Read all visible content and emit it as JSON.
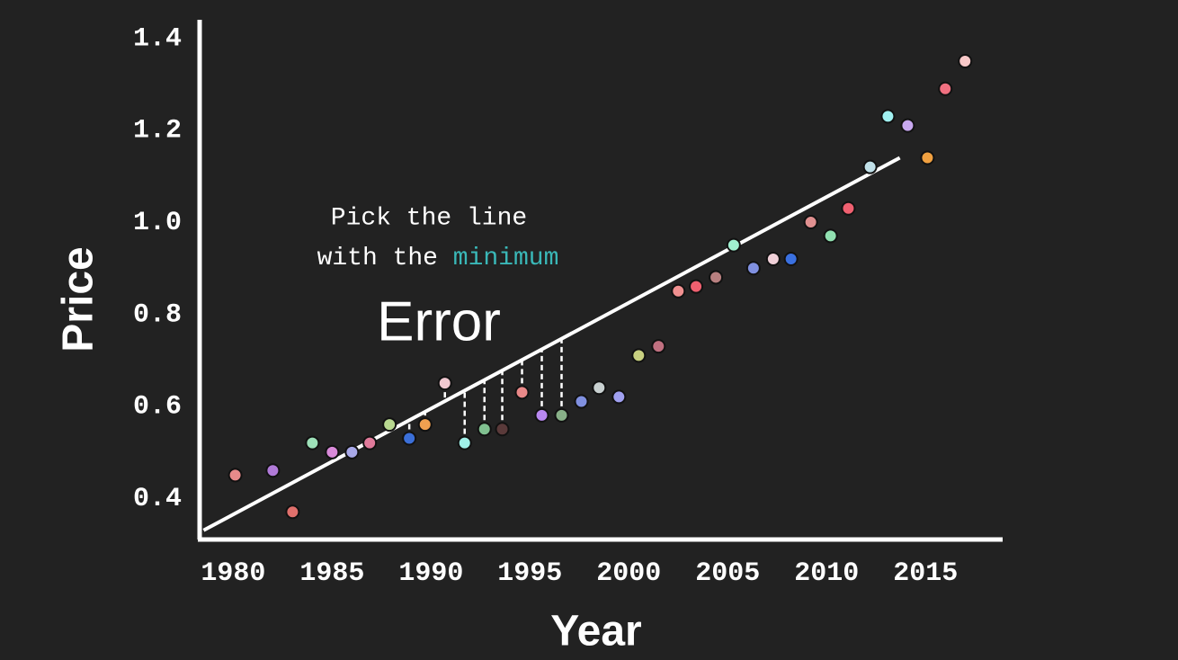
{
  "chart_data": {
    "type": "scatter",
    "x_label": "Year",
    "y_label": "Price",
    "annotation": {
      "line1": "Pick the line",
      "line2": "with the",
      "highlight": "minimum",
      "highlight_color": "#3ab8b8",
      "emphasis": "Error"
    },
    "xlim": [
      1978.3,
      2018.9
    ],
    "ylim": [
      0.31,
      1.44
    ],
    "xticks": [
      1980,
      1985,
      1990,
      1995,
      2000,
      2005,
      2010,
      2015
    ],
    "yticks": [
      {
        "value": 0.4,
        "label": "0.4"
      },
      {
        "value": 0.6,
        "label": "0.6"
      },
      {
        "value": 0.8,
        "label": "0.8"
      },
      {
        "value": 1.0,
        "label": "1.0"
      },
      {
        "value": 1.2,
        "label": "1.2"
      },
      {
        "value": 1.4,
        "label": "1.4"
      }
    ],
    "x": [
      1980.1,
      1982,
      1983,
      1984,
      1985,
      1986,
      1986.9,
      1987.9,
      1988.9,
      1989.7,
      1990.7,
      1991.7,
      1992.7,
      1993.6,
      1994.6,
      1995.6,
      1996.6,
      1997.6,
      1998.5,
      1999.5,
      2000.5,
      2001.5,
      2002.5,
      2003.4,
      2004.4,
      2005.3,
      2006.3,
      2007.3,
      2008.2,
      2009.2,
      2010.2,
      2011.1,
      2012.2,
      2013.1,
      2014.1,
      2015.1,
      2016,
      2017
    ],
    "values": [
      0.45,
      0.46,
      0.37,
      0.52,
      0.5,
      0.5,
      0.52,
      0.56,
      0.53,
      0.56,
      0.65,
      0.52,
      0.55,
      0.55,
      0.63,
      0.58,
      0.58,
      0.61,
      0.64,
      0.62,
      0.71,
      0.73,
      0.85,
      0.86,
      0.88,
      0.95,
      0.9,
      0.92,
      0.92,
      1.0,
      0.97,
      1.03,
      1.12,
      1.23,
      1.21,
      1.14,
      1.29,
      1.35
    ],
    "colors": [
      "#e88a8a",
      "#b07ad8",
      "#e0706c",
      "#9de0b8",
      "#d98ad9",
      "#a8a8e8",
      "#e07a9a",
      "#b8d890",
      "#3b6fd8",
      "#f0a050",
      "#f0c8d0",
      "#a0f0e8",
      "#80c090",
      "#5a3a3a",
      "#e88888",
      "#b888f0",
      "#88b088",
      "#8090e0",
      "#c8d0d0",
      "#a0a0f0",
      "#c8d080",
      "#c07080",
      "#f09090",
      "#f06070",
      "#b88080",
      "#a0f0d0",
      "#8090e0",
      "#f0d0d8",
      "#3a70e0",
      "#e09090",
      "#90e0b0",
      "#f06070",
      "#c0e0e8",
      "#a0f0f0",
      "#c8a8f0",
      "#f0a040",
      "#f07080",
      "#f8c8c8"
    ],
    "fit_line": {
      "x": [
        1978.5,
        2013.7
      ],
      "y": [
        0.33,
        1.14
      ]
    },
    "residual_points": [
      8,
      9,
      10,
      11,
      12,
      13,
      14,
      15,
      16
    ]
  }
}
